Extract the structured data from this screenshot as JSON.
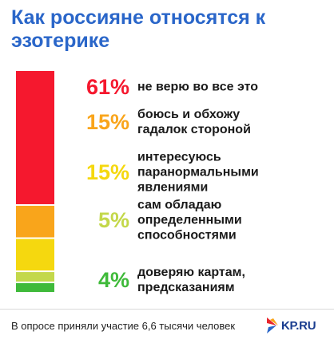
{
  "chart_data": {
    "type": "bar",
    "stacked": true,
    "title": "Как россияне относятся к эзотерике",
    "categories": [
      "не верю во все это",
      "боюсь и обхожу гадалок стороной",
      "интересуюсь паранормальными явлениями",
      "сам обладаю определенными способностями",
      "доверяю картам, предсказаниям"
    ],
    "label_lines": [
      [
        "не верю во все это"
      ],
      [
        "боюсь и обхожу",
        "гадалок стороной"
      ],
      [
        "интересуюсь",
        "паранормальными",
        "явлениями"
      ],
      [
        "сам обладаю",
        "определенными",
        "способностями"
      ],
      [
        "доверяю картам,",
        "предсказаниям"
      ]
    ],
    "values": [
      61,
      15,
      15,
      5,
      4
    ],
    "value_labels": [
      "61%",
      "15%",
      "15%",
      "5%",
      "4%"
    ],
    "colors": [
      "#f5182e",
      "#f9a51b",
      "#f5d80f",
      "#c3d84a",
      "#3fba3a"
    ]
  },
  "footer": {
    "note": "В опросе приняли участие 6,6 тысячи человек",
    "logo_text": "KP.RU"
  }
}
